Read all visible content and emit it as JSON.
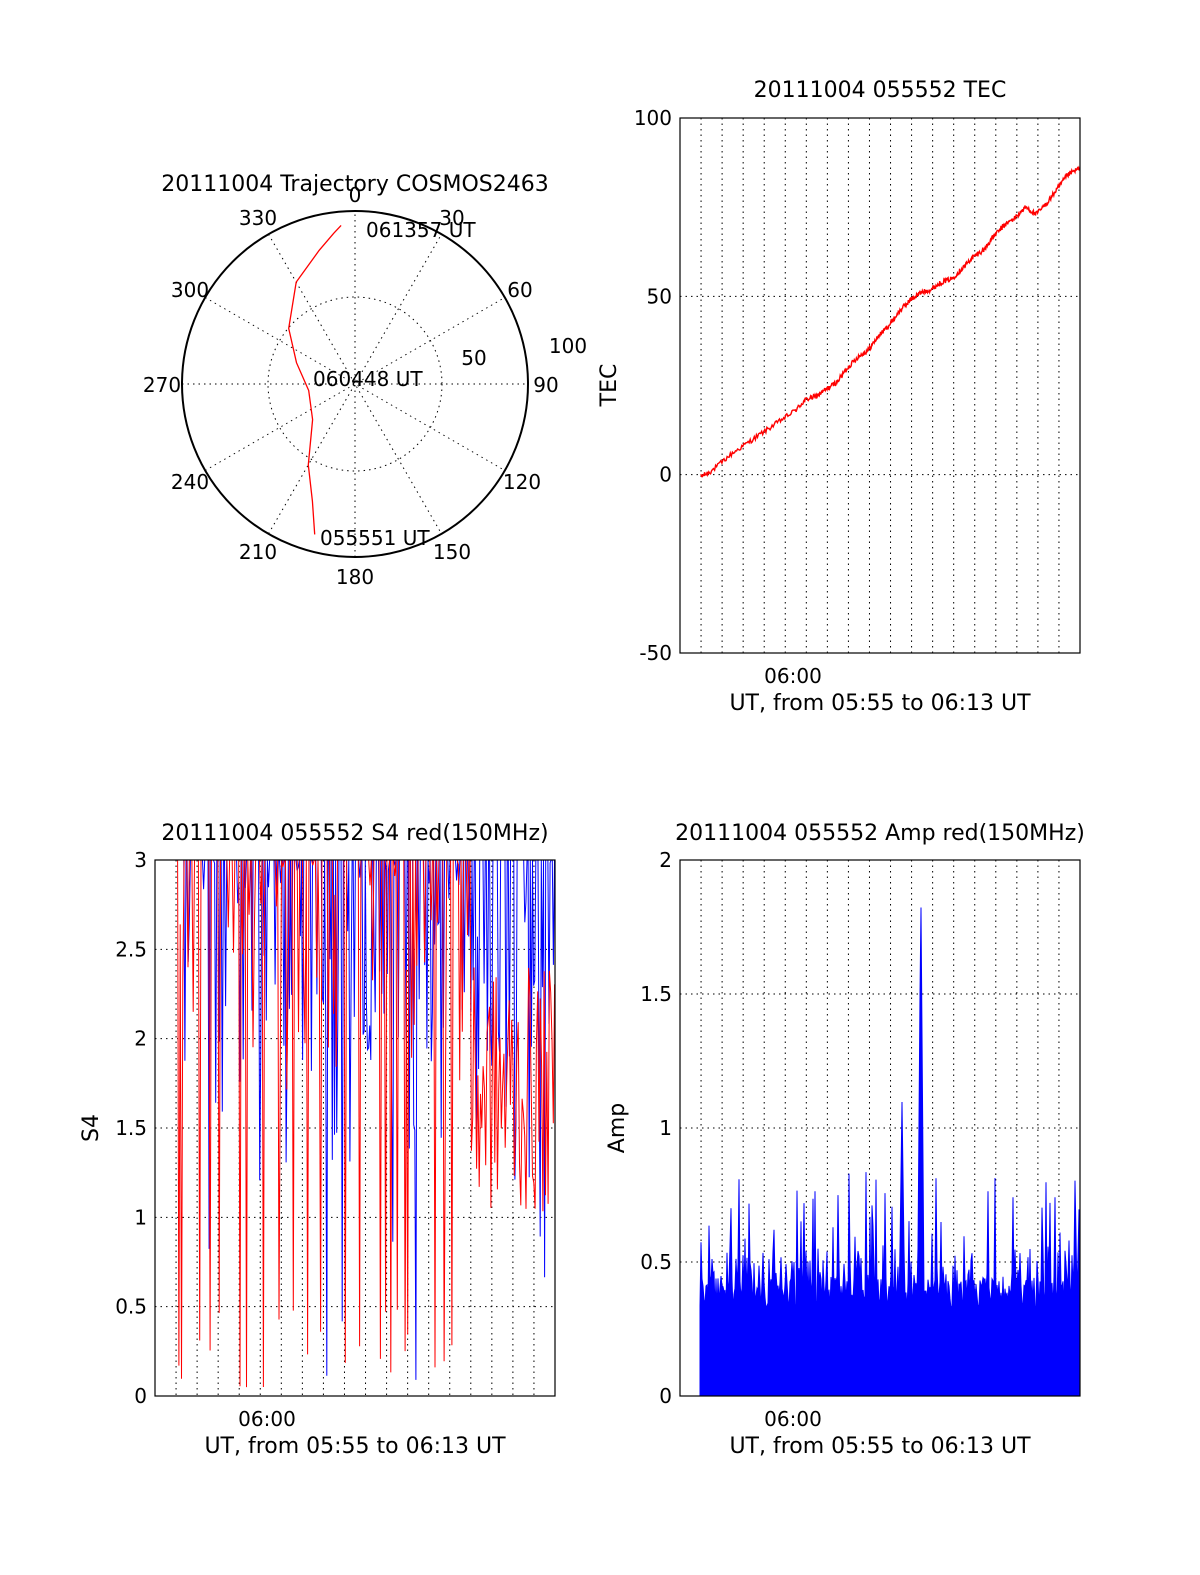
{
  "colors": {
    "red": "#ff0000",
    "blue": "#0000ff",
    "axis": "#000000"
  },
  "chart_data": [
    {
      "id": "trajectory",
      "type": "polar",
      "title": "20111004 Trajectory COSMOS2463",
      "azimuth_labels": [
        "0",
        "30",
        "60",
        "90",
        "120",
        "150",
        "180",
        "210",
        "240",
        "270",
        "300",
        "330"
      ],
      "radial_labels": [
        "50",
        "100"
      ],
      "point_labels": {
        "end": "061357 UT",
        "mid": "060448 UT",
        "start": "055551 UT"
      },
      "track": {
        "azimuth_deg": [
          195,
          200,
          210,
          230,
          262,
          290,
          310,
          330,
          345,
          352,
          355
        ],
        "zenith": [
          90,
          72,
          54,
          32,
          27,
          36,
          50,
          68,
          80,
          88,
          92
        ]
      },
      "grid": true
    },
    {
      "id": "tec",
      "type": "line",
      "title": "20111004 055552 TEC",
      "ylabel": "TEC",
      "xlabel": "UT, from 05:55 to 06:13 UT",
      "x_ticklabels": [
        "06:00"
      ],
      "y_ticklabels": [
        "100",
        "50",
        "0",
        "-50"
      ],
      "ylim": [
        -50,
        100
      ],
      "xlim_minutes": [
        354.5,
        373.6
      ],
      "grid": true,
      "series": [
        {
          "color": "red",
          "x_minutes": [
            355.5,
            356,
            357,
            358,
            359,
            360,
            360.5,
            361,
            361.5,
            362,
            362.5,
            363,
            363.5,
            364,
            364.5,
            365,
            365.5,
            366,
            366.5,
            367,
            367.5,
            368,
            368.5,
            369,
            369.5,
            370,
            370.5,
            371,
            371.5,
            372,
            372.5,
            373,
            373.6
          ],
          "tec": [
            -0.5,
            1,
            6,
            10,
            14,
            18,
            21,
            22,
            24,
            26,
            30,
            33,
            35,
            39,
            42,
            46,
            49,
            51,
            52,
            54,
            55,
            58,
            61,
            63,
            67,
            70,
            72,
            75,
            73,
            76,
            80,
            84,
            86
          ]
        }
      ]
    },
    {
      "id": "s4",
      "type": "line",
      "title": "20111004 055552 S4 red(150MHz)",
      "ylabel": "S4",
      "xlabel": "UT, from 05:55 to 06:13 UT",
      "x_ticklabels": [
        "06:00"
      ],
      "y_ticklabels": [
        "3",
        "2.5",
        "2",
        "1.5",
        "1",
        "0.5",
        "0"
      ],
      "ylim": [
        0,
        3
      ],
      "xlim_minutes": [
        354.5,
        373.6
      ],
      "grid": true,
      "series": [
        {
          "color": "blue",
          "range_min": [
            0,
            3
          ],
          "range_max": 3
        },
        {
          "color": "red",
          "range_min": [
            0,
            3
          ],
          "range_max": 3
        }
      ]
    },
    {
      "id": "amp",
      "type": "line",
      "title": "20111004 055552 Amp red(150MHz)",
      "ylabel": "Amp",
      "xlabel": "UT, from 05:55 to 06:13 UT",
      "x_ticklabels": [
        "06:00"
      ],
      "y_ticklabels": [
        "2",
        "1.5",
        "1",
        "0.5",
        "0"
      ],
      "ylim": [
        0,
        2
      ],
      "xlim_minutes": [
        354.5,
        373.6
      ],
      "grid": true,
      "series": [
        {
          "color": "blue",
          "peak_times_minutes": [
            365.1,
            366.0
          ],
          "peak_values": [
            1.1,
            1.9
          ]
        }
      ]
    }
  ]
}
